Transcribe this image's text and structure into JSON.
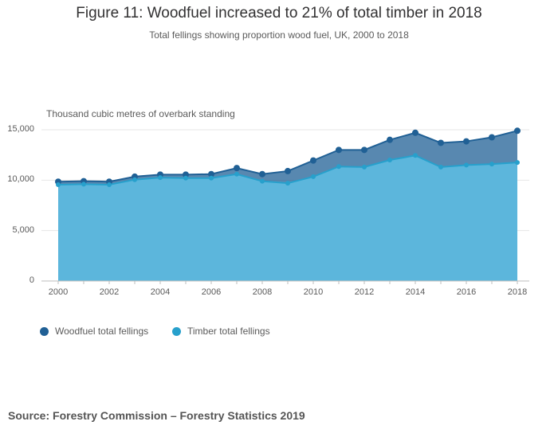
{
  "chart_data": {
    "type": "area",
    "title": "Figure 11: Woodfuel increased to 21% of total timber in 2018",
    "subtitle": "Total fellings showing proportion wood fuel, UK, 2000 to 2018",
    "ylabel": "Thousand cubic metres of overbark standing",
    "xlabel": "",
    "ylim": [
      0,
      15000
    ],
    "yticks": [
      0,
      5000,
      10000,
      15000
    ],
    "ytick_labels": [
      "0",
      "5,000",
      "10,000",
      "15,000"
    ],
    "x": [
      2000,
      2001,
      2002,
      2003,
      2004,
      2005,
      2006,
      2007,
      2008,
      2009,
      2010,
      2011,
      2012,
      2013,
      2014,
      2015,
      2016,
      2017,
      2018
    ],
    "xtick_labels": [
      "2000",
      "2002",
      "2004",
      "2006",
      "2008",
      "2010",
      "2012",
      "2014",
      "2016",
      "2018"
    ],
    "series": [
      {
        "name": "Woodfuel total fellings",
        "color": "#206095",
        "values": [
          9850,
          9900,
          9850,
          10350,
          10550,
          10550,
          10600,
          11200,
          10600,
          10900,
          11950,
          13000,
          13000,
          14000,
          14700,
          13700,
          13850,
          14250,
          14900
        ]
      },
      {
        "name": "Timber total fellings",
        "color": "#27a0cc",
        "values": [
          9550,
          9600,
          9550,
          10050,
          10250,
          10200,
          10200,
          10600,
          9900,
          9700,
          10350,
          11350,
          11300,
          12000,
          12450,
          11300,
          11500,
          11600,
          11750
        ]
      }
    ]
  },
  "legend": {
    "items": [
      {
        "label": "Woodfuel total fellings",
        "color": "#206095"
      },
      {
        "label": "Timber total fellings",
        "color": "#27a0cc"
      }
    ]
  },
  "source": "Source: Forestry Commission – Forestry Statistics 2019"
}
